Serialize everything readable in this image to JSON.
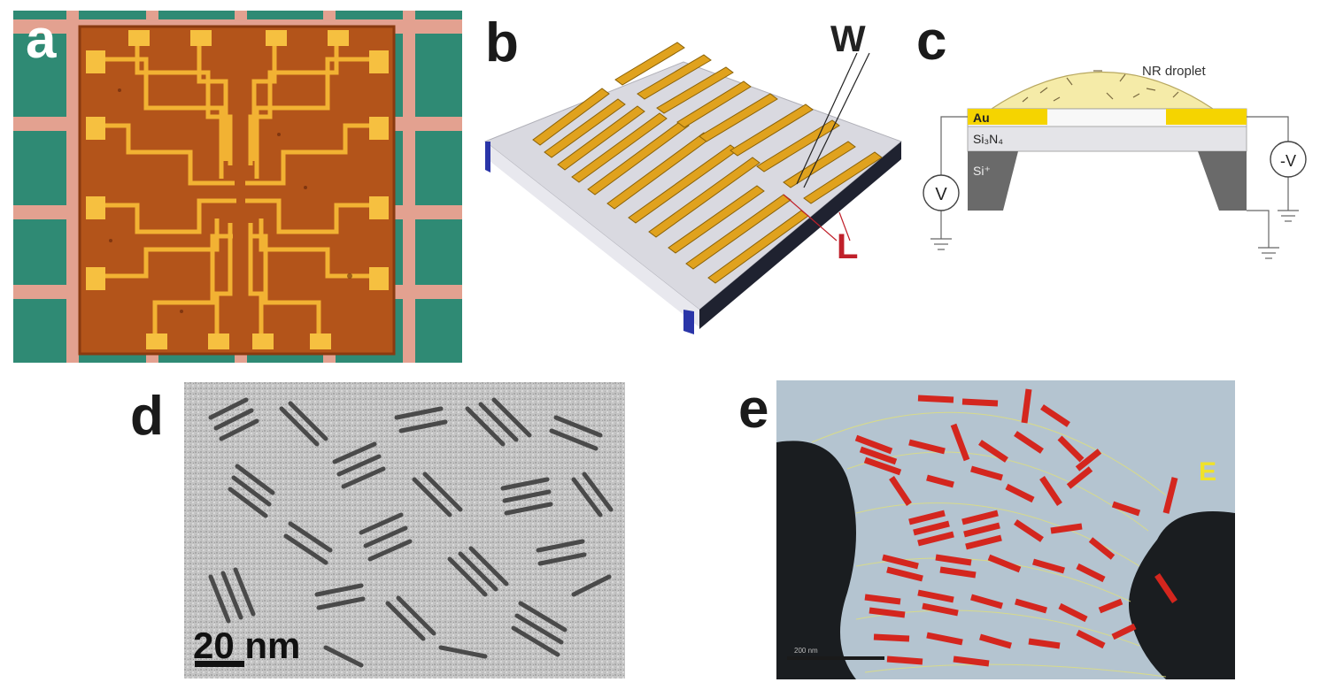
{
  "figure": {
    "panels": [
      {
        "label": "a"
      },
      {
        "label": "b"
      },
      {
        "label": "c"
      },
      {
        "label": "d"
      },
      {
        "label": "e"
      }
    ],
    "b": {
      "w_label": "W",
      "l_label": "L"
    },
    "c": {
      "droplet_label": "NR droplet",
      "au_label": "Au",
      "si3n4_label": "Si₃N₄",
      "si_label": "Si⁺",
      "v_label": "V",
      "negv_label": "-V"
    },
    "d": {
      "scalebar_label": "20 nm"
    },
    "e": {
      "marker_label": "E",
      "scalebar_label": "200 nm"
    }
  }
}
